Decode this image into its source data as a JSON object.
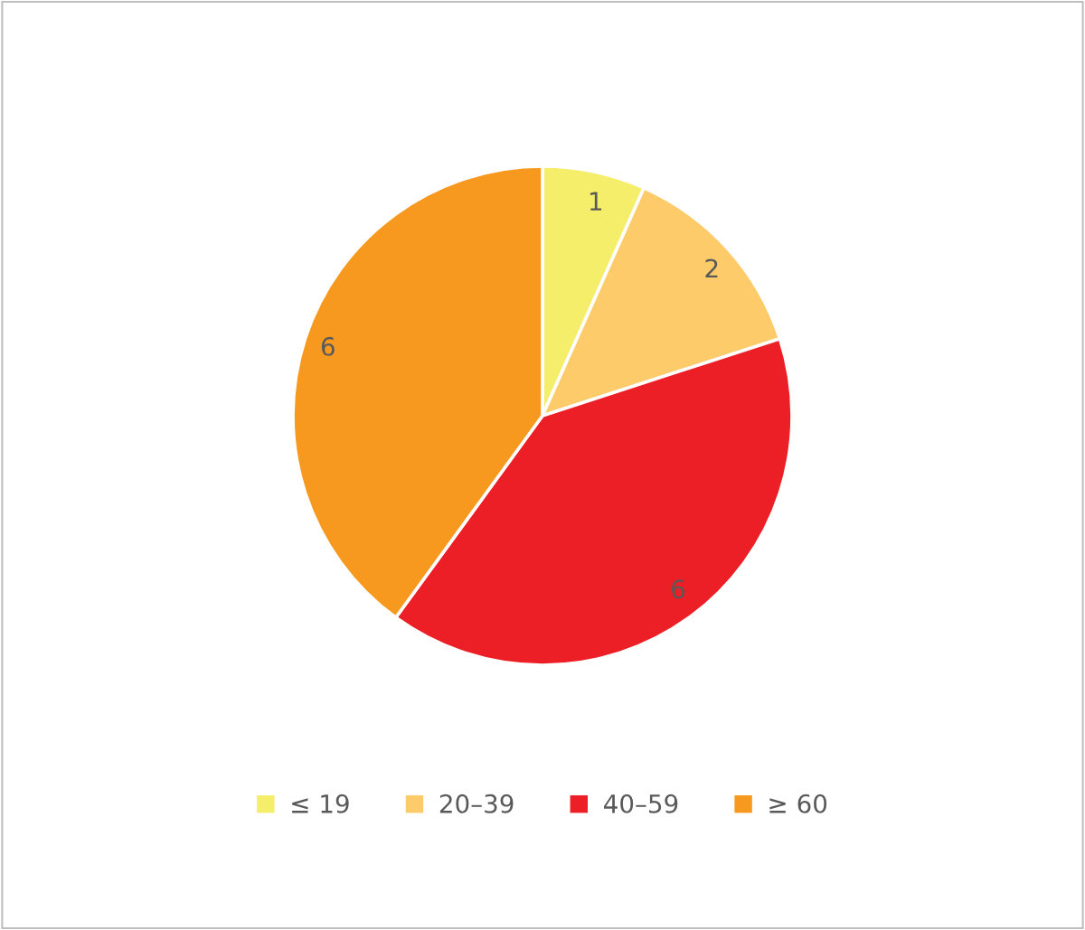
{
  "chart_data": {
    "type": "pie",
    "categories": [
      "≤ 19",
      "20–39",
      "40–59",
      "≥ 60"
    ],
    "values": [
      1,
      2,
      6,
      6
    ],
    "colors": [
      "#f5ee6b",
      "#fdcb6a",
      "#ed1f26",
      "#f7991f"
    ],
    "data_labels": true,
    "legend": "bottom"
  }
}
